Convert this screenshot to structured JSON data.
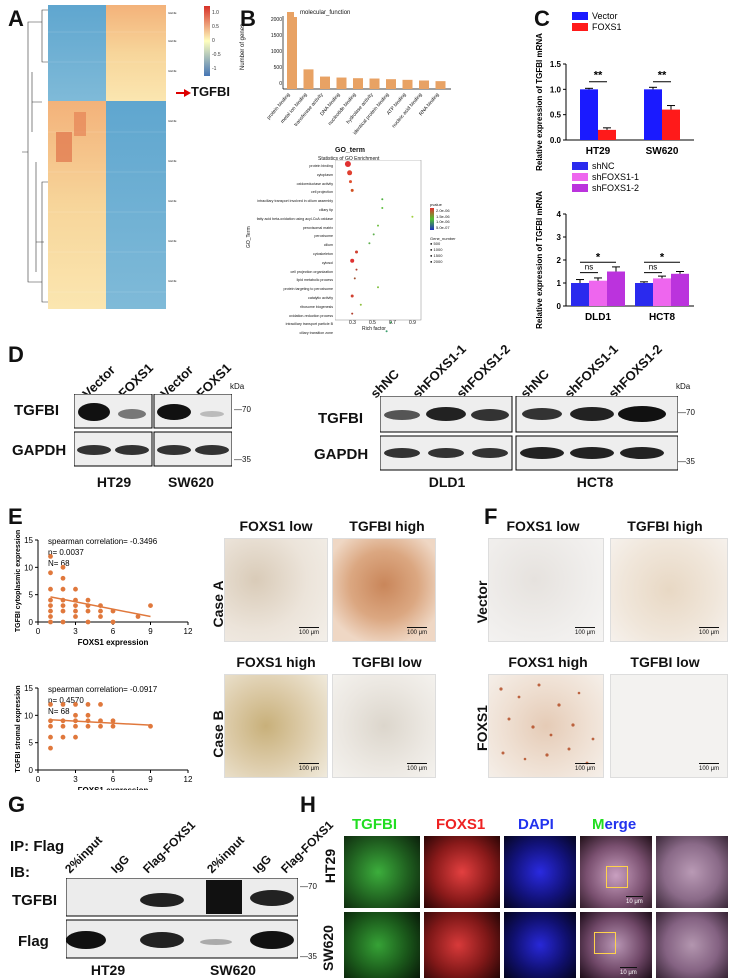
{
  "panel_letters": [
    "A",
    "B",
    "C",
    "D",
    "E",
    "F",
    "G",
    "H"
  ],
  "heatmap": {
    "label": "TGFBI",
    "legend_ticks": [
      "1.0",
      "0.5",
      "0",
      "-0.5",
      "-1"
    ]
  },
  "panelB": {
    "bar": {
      "legend": "molecular_function",
      "ylabel": "Number of genes",
      "yticks": [
        "0",
        "500",
        "1000",
        "1500",
        "2000"
      ],
      "categories": [
        "protein binding",
        "metal ion binding",
        "transferase activity",
        "DNA binding",
        "nucleotide binding",
        "hydrolase activity",
        "identical protein binding",
        "ATP binding",
        "nucleic acid binding",
        "RNA binding"
      ]
    },
    "dot": {
      "title": "GO_term",
      "subtitle": "Statistics of GO Enrichment",
      "ylabel": "GO_Term",
      "xlabel": "Rich factor",
      "xticks": [
        "0.3",
        "0.5",
        "0.7",
        "0.9"
      ],
      "terms": [
        "protein binding",
        "cytoplasm",
        "oxidoreductase activity",
        "cell projection",
        "intraciliary transport involved in cilium assembly",
        "ciliary tip",
        "fatty acid beta-oxidation using acyl-CoA oxidase",
        "peroxisomal matrix",
        "peroxisome",
        "cilium",
        "cytoskeleton",
        "cytosol",
        "cell projection organization",
        "lipid metabolic process",
        "protein targeting to peroxisome",
        "catalytic activity",
        "ribosome biogenesis",
        "oxidation-reduction process",
        "intraciliary transport particle B",
        "ciliary transition zone"
      ],
      "pvalue_title": "pvalue",
      "pvalue_ticks": [
        "2.0e-06",
        "1.5e-06",
        "1.0e-06",
        "5.0e-07"
      ],
      "size_title": "Gene_number",
      "size_ticks": [
        "500",
        "1000",
        "1500",
        "2000"
      ]
    }
  },
  "chart_data": [
    {
      "type": "bar",
      "title": "",
      "ylabel": "Relative expression of TGFBI mRNA",
      "categories": [
        "HT29",
        "SW620"
      ],
      "ylim": [
        0,
        1.5
      ],
      "yticks": [
        "0.0",
        "0.5",
        "1.0",
        "1.5"
      ],
      "series": [
        {
          "name": "Vector",
          "color": "#1a1aff",
          "values": [
            1.0,
            1.0
          ],
          "err": [
            0.02,
            0.04
          ]
        },
        {
          "name": "FOXS1",
          "color": "#ff1a1a",
          "values": [
            0.2,
            0.6
          ],
          "err": [
            0.04,
            0.08
          ]
        }
      ],
      "annotations": [
        "**",
        "**"
      ]
    },
    {
      "type": "bar",
      "title": "",
      "ylabel": "Relative expression of TGFBI mRNA",
      "categories": [
        "DLD1",
        "HCT8"
      ],
      "ylim": [
        0,
        4
      ],
      "yticks": [
        "0",
        "1",
        "2",
        "3",
        "4"
      ],
      "series": [
        {
          "name": "shNC",
          "color": "#2a2aee",
          "values": [
            1.0,
            1.0
          ],
          "err": [
            0.15,
            0.05
          ]
        },
        {
          "name": "shFOXS1-1",
          "color": "#ee66ee",
          "values": [
            1.1,
            1.2
          ],
          "err": [
            0.12,
            0.1
          ]
        },
        {
          "name": "shFOXS1-2",
          "color": "#bb33dd",
          "values": [
            1.5,
            1.4
          ],
          "err": [
            0.2,
            0.1
          ]
        }
      ],
      "annotations": [
        {
          "pair": "ns",
          "top": "*"
        },
        {
          "pair": "ns",
          "top": "*"
        }
      ]
    },
    {
      "type": "scatter",
      "xlabel": "FOXS1 expression",
      "ylabel": "TGFBI cytoplasmic expression",
      "xlim": [
        0,
        12
      ],
      "ylim": [
        0,
        15
      ],
      "xticks": [
        "0",
        "3",
        "6",
        "9",
        "12"
      ],
      "yticks": [
        "0",
        "5",
        "10",
        "15"
      ],
      "stats": [
        "spearman correlation= -0.3496",
        "p= 0.0037",
        "N= 68"
      ],
      "points": [
        [
          1,
          12
        ],
        [
          1,
          9
        ],
        [
          1,
          6
        ],
        [
          1,
          4
        ],
        [
          1,
          3
        ],
        [
          1,
          2
        ],
        [
          1,
          1
        ],
        [
          1,
          0
        ],
        [
          2,
          10
        ],
        [
          2,
          8
        ],
        [
          2,
          6
        ],
        [
          2,
          4
        ],
        [
          2,
          3
        ],
        [
          2,
          2
        ],
        [
          2,
          0
        ],
        [
          3,
          6
        ],
        [
          3,
          4
        ],
        [
          3,
          3
        ],
        [
          3,
          2
        ],
        [
          3,
          1
        ],
        [
          4,
          4
        ],
        [
          4,
          3
        ],
        [
          4,
          2
        ],
        [
          4,
          0
        ],
        [
          5,
          3
        ],
        [
          5,
          2
        ],
        [
          5,
          1
        ],
        [
          6,
          2
        ],
        [
          6,
          0
        ],
        [
          8,
          1
        ],
        [
          9,
          3
        ]
      ],
      "fit": [
        [
          1,
          4.6
        ],
        [
          9,
          1.0
        ]
      ],
      "color": "#e0783c"
    },
    {
      "type": "scatter",
      "xlabel": "FOXS1 expression",
      "ylabel": "TGFBI stromal expression",
      "xlim": [
        0,
        12
      ],
      "ylim": [
        0,
        15
      ],
      "xticks": [
        "0",
        "3",
        "6",
        "9",
        "12"
      ],
      "yticks": [
        "0",
        "5",
        "10",
        "15"
      ],
      "stats": [
        "spearman correlation= -0.0917",
        "p= 0.4570",
        "N= 68"
      ],
      "points": [
        [
          1,
          12
        ],
        [
          1,
          9
        ],
        [
          1,
          8
        ],
        [
          1,
          6
        ],
        [
          1,
          4
        ],
        [
          2,
          12
        ],
        [
          2,
          9
        ],
        [
          2,
          8
        ],
        [
          2,
          6
        ],
        [
          3,
          12
        ],
        [
          3,
          10
        ],
        [
          3,
          9
        ],
        [
          3,
          8
        ],
        [
          3,
          6
        ],
        [
          4,
          12
        ],
        [
          4,
          10
        ],
        [
          4,
          9
        ],
        [
          4,
          8
        ],
        [
          5,
          12
        ],
        [
          5,
          9
        ],
        [
          5,
          8
        ],
        [
          6,
          9
        ],
        [
          6,
          8
        ],
        [
          9,
          8
        ]
      ],
      "fit": [
        [
          1,
          9.2
        ],
        [
          9,
          8.2
        ]
      ],
      "color": "#e0783c"
    }
  ],
  "panelD": {
    "left": {
      "lanes": [
        "Vector",
        "FOXS1",
        "Vector",
        "FOXS1"
      ],
      "rows": [
        "TGFBI",
        "GAPDH"
      ],
      "markers": [
        "kDa",
        "70",
        "35"
      ],
      "cells": [
        "HT29",
        "SW620"
      ]
    },
    "right": {
      "lanes": [
        "shNC",
        "shFOXS1-1",
        "shFOXS1-2",
        "shNC",
        "shFOXS1-1",
        "shFOXS1-2"
      ],
      "rows": [
        "TGFBI",
        "GAPDH"
      ],
      "markers": [
        "kDa",
        "70",
        "35"
      ],
      "cells": [
        "DLD1",
        "HCT8"
      ]
    }
  },
  "panelE": {
    "headers_top": [
      "FOXS1 low",
      "TGFBI high"
    ],
    "headers_bottom": [
      "FOXS1 high",
      "TGFBI low"
    ],
    "cases": [
      "Case A",
      "Case B"
    ],
    "scale": "100 μm"
  },
  "panelF": {
    "headers_top": [
      "FOXS1 low",
      "TGFBI high"
    ],
    "headers_bottom": [
      "FOXS1 high",
      "TGFBI low"
    ],
    "rows": [
      "Vector",
      "FOXS1"
    ],
    "scale": "100 μm"
  },
  "panelG": {
    "ip": "IP: Flag",
    "ib": "IB:",
    "lanes": [
      "2%input",
      "IgG",
      "Flag-FOXS1",
      "2%input",
      "IgG",
      "Flag-FOXS1"
    ],
    "rows": [
      "TGFBI",
      "Flag"
    ],
    "markers": [
      "70",
      "35"
    ],
    "cells": [
      "HT29",
      "SW620"
    ]
  },
  "panelH": {
    "channels": [
      "TGFBI",
      "FOXS1",
      "DAPI",
      "Merge"
    ],
    "merge_parts": [
      "M",
      "erge"
    ],
    "rows": [
      "HT29",
      "SW620"
    ],
    "scale": "10 μm"
  }
}
